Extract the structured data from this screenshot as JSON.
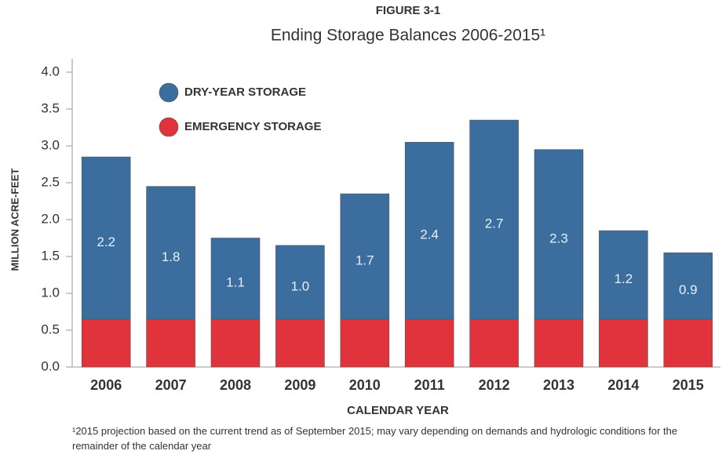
{
  "chart_data": {
    "type": "stacked_bar",
    "figure_label": "FIGURE 3-1",
    "title": "Ending Storage Balances 2006-2015¹",
    "y_label": "MILLION ACRE-FEET",
    "x_label": "CALENDAR YEAR",
    "footnote": "¹2015 projection based on the current trend as of September 2015; may vary depending on demands and hydrologic conditions for the remainder of the calendar year",
    "categories": [
      "2006",
      "2007",
      "2008",
      "2009",
      "2010",
      "2011",
      "2012",
      "2013",
      "2014",
      "2015"
    ],
    "series": [
      {
        "name": "EMERGENCY STORAGE",
        "color": "#e0333c",
        "values": [
          0.65,
          0.65,
          0.65,
          0.65,
          0.65,
          0.65,
          0.65,
          0.65,
          0.65,
          0.65
        ]
      },
      {
        "name": "DRY-YEAR STORAGE",
        "color": "#3b6e9e",
        "values": [
          2.2,
          1.8,
          1.1,
          1.0,
          1.7,
          2.4,
          2.7,
          2.3,
          1.2,
          0.9
        ],
        "value_labels": [
          "2.2",
          "1.8",
          "1.1",
          "1.0",
          "1.7",
          "2.4",
          "2.7",
          "2.3",
          "1.2",
          "0.9"
        ]
      }
    ],
    "ylim": [
      0,
      4
    ],
    "yticks": [
      {
        "value": 0,
        "label": "0.0"
      },
      0.5,
      {
        "value": 1,
        "label": "1.0"
      },
      1.5,
      {
        "value": 2,
        "label": "2.0"
      },
      2.5,
      {
        "value": 3,
        "label": "3.0"
      },
      3.5,
      {
        "value": 4,
        "label": "4.0"
      }
    ]
  }
}
